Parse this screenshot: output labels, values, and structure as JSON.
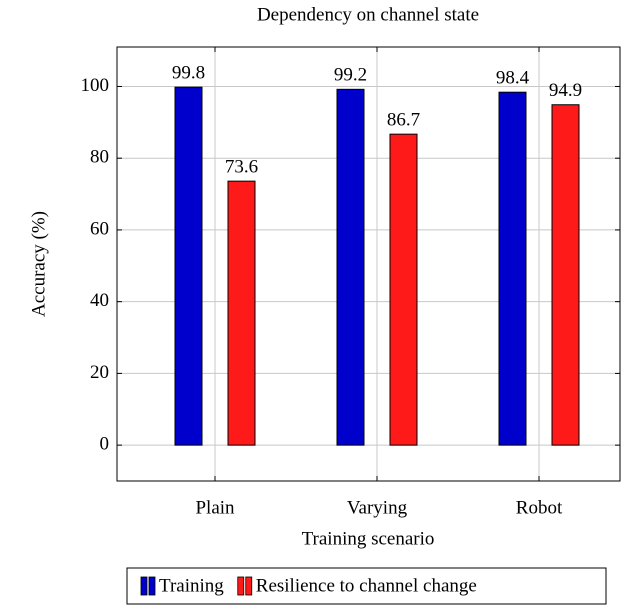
{
  "chart_data": {
    "type": "bar",
    "title": "Dependency on channel state",
    "x_label": "Training scenario",
    "y_label": "Accuracy (%)",
    "categories": [
      "Plain",
      "Varying",
      "Robot"
    ],
    "series": [
      {
        "name": "Training",
        "color": "#0000cc",
        "values": [
          99.8,
          99.2,
          98.4
        ]
      },
      {
        "name": "Resilience to channel change",
        "color": "#ff1a1a",
        "values": [
          73.6,
          86.7,
          94.9
        ]
      }
    ],
    "ylim": [
      -10,
      111
    ],
    "yticks": [
      0,
      20,
      40,
      60,
      80,
      100
    ],
    "grid": true,
    "legend": "bottom"
  }
}
